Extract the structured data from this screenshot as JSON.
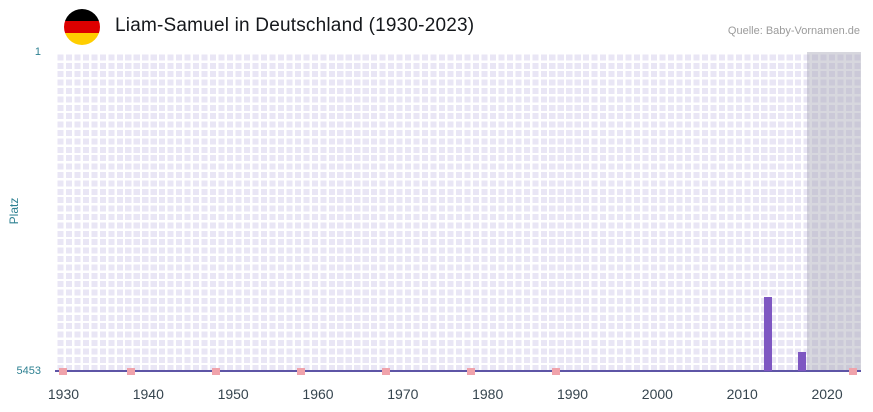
{
  "header": {
    "title": "Liam-Samuel in Deutschland (1930-2023)",
    "source": "Quelle: Baby-Vornamen.de",
    "flag_icon": "german-flag",
    "flag_colors": [
      "#000000",
      "#dd0000",
      "#ffce00"
    ]
  },
  "chart_data": {
    "type": "bar",
    "title": "Liam-Samuel in Deutschland (1930-2023)",
    "source": "Quelle: Baby-Vornamen.de",
    "xlabel": "",
    "ylabel": "Platz",
    "y_axis": {
      "inverted": true,
      "min": 1,
      "max": 5453,
      "tick_labels": [
        "1",
        "5453"
      ]
    },
    "x_axis": {
      "min": 1929,
      "max": 2024,
      "ticks": [
        1930,
        1940,
        1950,
        1960,
        1970,
        1980,
        1990,
        2000,
        2010,
        2020
      ]
    },
    "ranked": [
      {
        "year": 2013,
        "platz": 4188
      },
      {
        "year": 2017,
        "platz": 5128
      }
    ],
    "unranked_years": [
      1930,
      1938,
      1948,
      1958,
      1968,
      1978,
      1988,
      2023
    ],
    "recent_band": {
      "from": 2017.6,
      "to": 2024
    },
    "grid": true,
    "legend": "none",
    "colors": {
      "bar": "#7e57c2",
      "unranked": "#f0a3ab",
      "plot_bg": "#e9e6f5",
      "grid": "#ffffff",
      "band": "rgba(167,167,182,0.45)",
      "axis_line": "#5e55a6",
      "y_label": "#2e8192",
      "x_tick": "#36454f",
      "title": "#15181c",
      "source": "#9b9b9b"
    }
  }
}
